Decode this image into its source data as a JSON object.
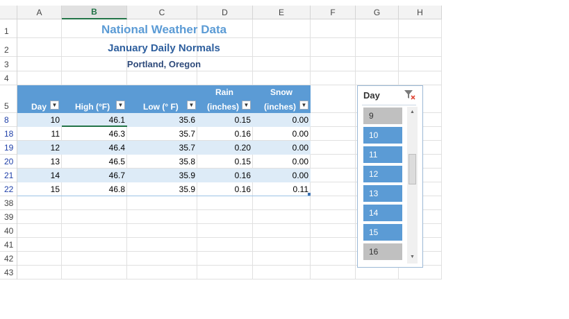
{
  "columns": [
    "A",
    "B",
    "C",
    "D",
    "E",
    "F",
    "G",
    "H"
  ],
  "selected_column": "B",
  "rows": [
    "1",
    "2",
    "3",
    "4",
    "5",
    "8",
    "18",
    "19",
    "20",
    "21",
    "22",
    "38",
    "39",
    "40",
    "41",
    "42",
    "43"
  ],
  "titles": {
    "main": "National Weather Data",
    "sub": "January Daily Normals",
    "location": "Portland, Oregon"
  },
  "table": {
    "headers": {
      "day": "Day",
      "high": "High (°F)",
      "low": "Low (° F)",
      "rain_1": "Rain",
      "rain_2": "(inches)",
      "snow_1": "Snow",
      "snow_2": "(inches)"
    },
    "rows": [
      {
        "day": "10",
        "high": "46.1",
        "low": "35.6",
        "rain": "0.15",
        "snow": "0.00"
      },
      {
        "day": "11",
        "high": "46.3",
        "low": "35.7",
        "rain": "0.16",
        "snow": "0.00"
      },
      {
        "day": "12",
        "high": "46.4",
        "low": "35.7",
        "rain": "0.20",
        "snow": "0.00"
      },
      {
        "day": "13",
        "high": "46.5",
        "low": "35.8",
        "rain": "0.15",
        "snow": "0.00"
      },
      {
        "day": "14",
        "high": "46.7",
        "low": "35.9",
        "rain": "0.16",
        "snow": "0.00"
      },
      {
        "day": "15",
        "high": "46.8",
        "low": "35.9",
        "rain": "0.16",
        "snow": "0.11"
      }
    ]
  },
  "slicer": {
    "title": "Day",
    "items": [
      {
        "label": "9",
        "selected": false
      },
      {
        "label": "10",
        "selected": true
      },
      {
        "label": "11",
        "selected": true
      },
      {
        "label": "12",
        "selected": true
      },
      {
        "label": "13",
        "selected": true
      },
      {
        "label": "14",
        "selected": true
      },
      {
        "label": "15",
        "selected": true
      },
      {
        "label": "16",
        "selected": false
      }
    ]
  },
  "colors": {
    "header_blue": "#5b9bd5",
    "band_blue": "#ddebf7",
    "excel_green": "#217346"
  }
}
